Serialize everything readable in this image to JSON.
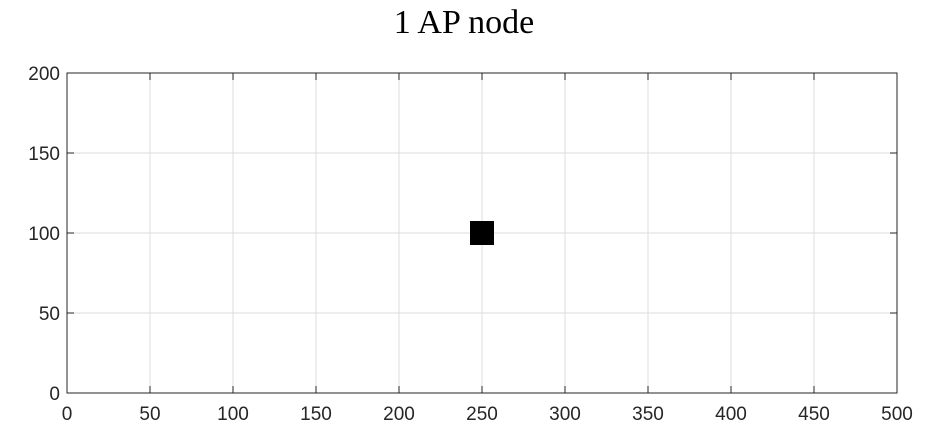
{
  "chart_data": {
    "type": "scatter",
    "title": "1 AP node",
    "xlabel": "",
    "ylabel": "",
    "xlim": [
      0,
      500
    ],
    "ylim": [
      0,
      200
    ],
    "x_ticks": [
      0,
      50,
      100,
      150,
      200,
      250,
      300,
      350,
      400,
      450,
      500
    ],
    "y_ticks": [
      0,
      50,
      100,
      150,
      200
    ],
    "grid": true,
    "marker": "square",
    "marker_color": "#000000",
    "series": [
      {
        "points": [
          {
            "x": 250,
            "y": 100
          }
        ]
      }
    ]
  }
}
